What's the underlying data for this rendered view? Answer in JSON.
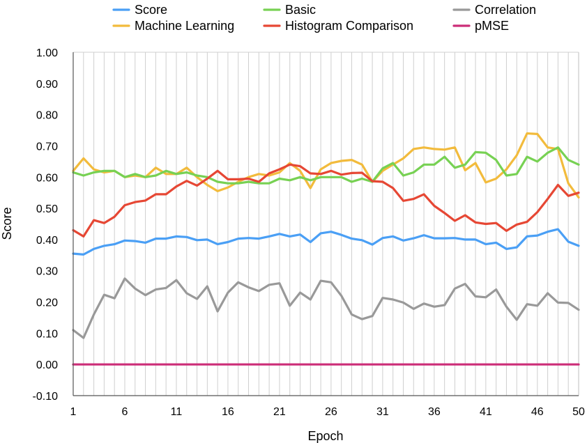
{
  "chart_data": {
    "type": "line",
    "xlabel": "Epoch",
    "ylabel": "Score",
    "ylim": [
      -0.1,
      1.0
    ],
    "yticks": [
      "1.00",
      "0.90",
      "0.80",
      "0.70",
      "0.60",
      "0.50",
      "0.40",
      "0.30",
      "0.20",
      "0.10",
      "0.00",
      "-0.10"
    ],
    "xticks": [
      "1",
      "6",
      "11",
      "16",
      "21",
      "26",
      "31",
      "36",
      "41",
      "46",
      "50"
    ],
    "grid": "vertical",
    "legend_position": "top",
    "x": [
      1,
      2,
      3,
      4,
      5,
      6,
      7,
      8,
      9,
      10,
      11,
      12,
      13,
      14,
      15,
      16,
      17,
      18,
      19,
      20,
      21,
      22,
      23,
      24,
      25,
      26,
      27,
      28,
      29,
      30,
      31,
      32,
      33,
      34,
      35,
      36,
      37,
      38,
      39,
      40,
      41,
      42,
      43,
      44,
      45,
      46,
      47,
      48,
      49,
      50
    ],
    "series": [
      {
        "name": "Score",
        "color": "#4a9ff5",
        "values": [
          0.355,
          0.352,
          0.37,
          0.38,
          0.385,
          0.397,
          0.395,
          0.39,
          0.403,
          0.403,
          0.41,
          0.408,
          0.398,
          0.4,
          0.385,
          0.392,
          0.403,
          0.405,
          0.403,
          0.41,
          0.418,
          0.41,
          0.416,
          0.392,
          0.42,
          0.425,
          0.415,
          0.403,
          0.398,
          0.384,
          0.405,
          0.41,
          0.397,
          0.404,
          0.414,
          0.404,
          0.404,
          0.405,
          0.4,
          0.4,
          0.385,
          0.39,
          0.37,
          0.375,
          0.41,
          0.413,
          0.425,
          0.433,
          0.393,
          0.38
        ]
      },
      {
        "name": "Machine Learning",
        "color": "#f2bb3c",
        "values": [
          0.62,
          0.66,
          0.625,
          0.615,
          0.62,
          0.6,
          0.605,
          0.6,
          0.63,
          0.61,
          0.61,
          0.63,
          0.6,
          0.575,
          0.555,
          0.567,
          0.585,
          0.6,
          0.61,
          0.605,
          0.615,
          0.645,
          0.62,
          0.565,
          0.625,
          0.645,
          0.652,
          0.655,
          0.64,
          0.585,
          0.62,
          0.64,
          0.66,
          0.69,
          0.695,
          0.69,
          0.688,
          0.695,
          0.622,
          0.645,
          0.583,
          0.595,
          0.625,
          0.67,
          0.74,
          0.738,
          0.695,
          0.69,
          0.58,
          0.535
        ]
      },
      {
        "name": "Basic",
        "color": "#77d153",
        "values": [
          0.615,
          0.605,
          0.615,
          0.62,
          0.62,
          0.6,
          0.61,
          0.6,
          0.605,
          0.62,
          0.61,
          0.615,
          0.605,
          0.6,
          0.585,
          0.58,
          0.58,
          0.585,
          0.58,
          0.58,
          0.595,
          0.59,
          0.6,
          0.59,
          0.6,
          0.6,
          0.6,
          0.585,
          0.595,
          0.585,
          0.628,
          0.645,
          0.605,
          0.615,
          0.64,
          0.64,
          0.665,
          0.63,
          0.64,
          0.68,
          0.678,
          0.655,
          0.605,
          0.61,
          0.665,
          0.65,
          0.678,
          0.695,
          0.655,
          0.64
        ]
      },
      {
        "name": "Histogram Comparison",
        "color": "#e64734",
        "values": [
          0.43,
          0.41,
          0.462,
          0.453,
          0.473,
          0.51,
          0.52,
          0.525,
          0.545,
          0.545,
          0.57,
          0.588,
          0.573,
          0.595,
          0.62,
          0.593,
          0.593,
          0.595,
          0.585,
          0.612,
          0.625,
          0.64,
          0.635,
          0.612,
          0.61,
          0.62,
          0.608,
          0.613,
          0.614,
          0.587,
          0.585,
          0.565,
          0.524,
          0.53,
          0.545,
          0.508,
          0.485,
          0.46,
          0.478,
          0.455,
          0.45,
          0.453,
          0.428,
          0.448,
          0.457,
          0.488,
          0.53,
          0.575,
          0.54,
          0.55
        ]
      },
      {
        "name": "Correlation",
        "color": "#999999",
        "values": [
          0.11,
          0.085,
          0.16,
          0.223,
          0.212,
          0.275,
          0.243,
          0.222,
          0.24,
          0.245,
          0.27,
          0.228,
          0.21,
          0.25,
          0.17,
          0.23,
          0.263,
          0.247,
          0.235,
          0.255,
          0.26,
          0.188,
          0.23,
          0.208,
          0.268,
          0.263,
          0.22,
          0.16,
          0.145,
          0.155,
          0.213,
          0.208,
          0.198,
          0.178,
          0.195,
          0.185,
          0.19,
          0.243,
          0.258,
          0.218,
          0.215,
          0.24,
          0.185,
          0.143,
          0.193,
          0.188,
          0.228,
          0.198,
          0.197,
          0.175
        ]
      },
      {
        "name": "pMSE",
        "color": "#cc2d78",
        "values": [
          0,
          0,
          0,
          0,
          0,
          0,
          0,
          0,
          0,
          0,
          0,
          0,
          0,
          0,
          0,
          0,
          0,
          0,
          0,
          0,
          0,
          0,
          0,
          0,
          0,
          0,
          0,
          0,
          0,
          0,
          0,
          0,
          0,
          0,
          0,
          0,
          0,
          0,
          0,
          0,
          0,
          0,
          0,
          0,
          0,
          0,
          0,
          0,
          0,
          0
        ]
      }
    ]
  }
}
